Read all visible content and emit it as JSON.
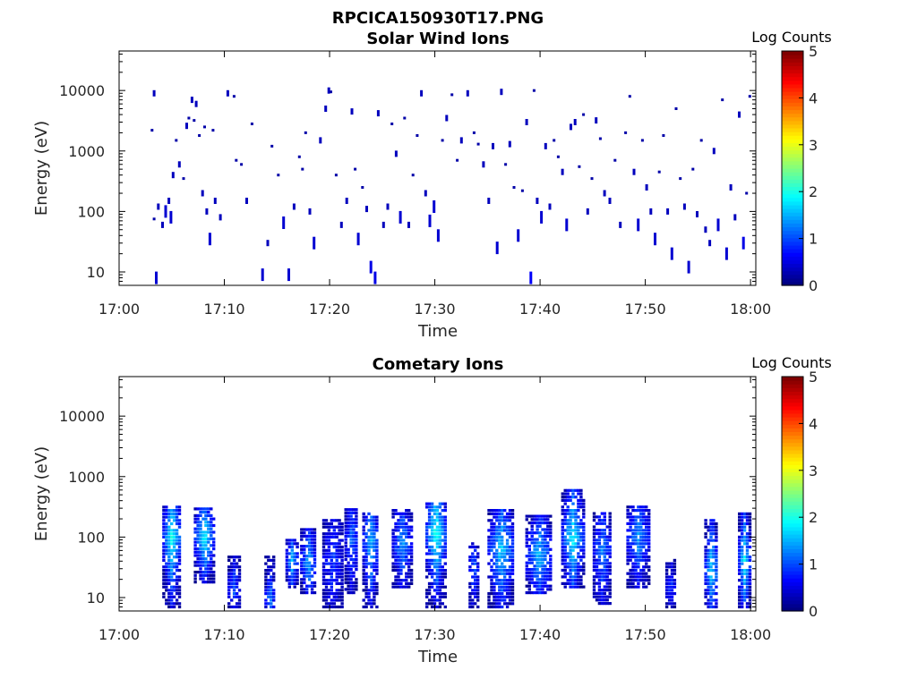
{
  "figure": {
    "title": "RPCICA150930T17.PNG"
  },
  "colorbar": {
    "title": "Log Counts",
    "ticks": [
      "0",
      "1",
      "2",
      "3",
      "4",
      "5"
    ],
    "min": 0,
    "max": 5,
    "colormap": "jet"
  },
  "chart_data": [
    {
      "type": "heatmap",
      "title": "Solar Wind Ions",
      "xlabel": "Time",
      "ylabel": "Energy (eV)",
      "x_ticks": [
        "17:00",
        "17:10",
        "17:20",
        "17:30",
        "17:40",
        "17:50",
        "18:00"
      ],
      "x_range_minutes": [
        0,
        60.5
      ],
      "y_ticks": [
        "10",
        "100",
        "1000",
        "10000"
      ],
      "y_scale": "log",
      "y_range": [
        6,
        45000
      ],
      "color_label": "Log Counts",
      "color_range": [
        0,
        5
      ],
      "cells": [
        [
          3.2,
          9000,
          0.3
        ],
        [
          3.0,
          2200,
          0.2
        ],
        [
          3.2,
          75,
          0.2
        ],
        [
          3.6,
          120,
          0.3
        ],
        [
          3.4,
          8,
          0.4
        ],
        [
          4.0,
          60,
          0.3
        ],
        [
          4.3,
          100,
          0.4
        ],
        [
          4.6,
          150,
          0.3
        ],
        [
          4.8,
          80,
          0.4
        ],
        [
          5.0,
          400,
          0.3
        ],
        [
          5.3,
          1500,
          0.2
        ],
        [
          5.6,
          600,
          0.3
        ],
        [
          6.0,
          350,
          0.2
        ],
        [
          6.3,
          2600,
          0.3
        ],
        [
          6.5,
          3500,
          0.2
        ],
        [
          6.8,
          7000,
          0.3
        ],
        [
          7.0,
          3200,
          0.2
        ],
        [
          7.2,
          6000,
          0.3
        ],
        [
          7.5,
          1800,
          0.2
        ],
        [
          7.8,
          200,
          0.3
        ],
        [
          8.0,
          2500,
          0.2
        ],
        [
          8.2,
          100,
          0.3
        ],
        [
          8.5,
          35,
          0.4
        ],
        [
          8.8,
          2200,
          0.2
        ],
        [
          9.0,
          150,
          0.3
        ],
        [
          9.5,
          80,
          0.3
        ],
        [
          10.2,
          9000,
          0.3
        ],
        [
          10.8,
          8000,
          0.2
        ],
        [
          11.0,
          700,
          0.2
        ],
        [
          11.5,
          600,
          0.2
        ],
        [
          12.0,
          150,
          0.3
        ],
        [
          12.5,
          2800,
          0.2
        ],
        [
          13.5,
          9,
          0.4
        ],
        [
          14.0,
          30,
          0.3
        ],
        [
          14.4,
          1200,
          0.2
        ],
        [
          15.0,
          400,
          0.2
        ],
        [
          15.5,
          65,
          0.4
        ],
        [
          16.0,
          9,
          0.4
        ],
        [
          16.5,
          120,
          0.3
        ],
        [
          17.0,
          800,
          0.2
        ],
        [
          17.3,
          500,
          0.2
        ],
        [
          17.6,
          2000,
          0.2
        ],
        [
          18.0,
          100,
          0.3
        ],
        [
          18.4,
          30,
          0.4
        ],
        [
          19.0,
          1500,
          0.3
        ],
        [
          19.5,
          5000,
          0.3
        ],
        [
          19.8,
          10000,
          0.3
        ],
        [
          20.0,
          9500,
          0.2
        ],
        [
          20.5,
          400,
          0.2
        ],
        [
          21.0,
          60,
          0.3
        ],
        [
          21.5,
          150,
          0.3
        ],
        [
          22.0,
          4500,
          0.3
        ],
        [
          22.3,
          500,
          0.2
        ],
        [
          22.6,
          35,
          0.4
        ],
        [
          23.0,
          250,
          0.2
        ],
        [
          23.4,
          110,
          0.3
        ],
        [
          23.8,
          12,
          0.5
        ],
        [
          24.2,
          8,
          0.5
        ],
        [
          24.5,
          4200,
          0.3
        ],
        [
          25.0,
          60,
          0.3
        ],
        [
          25.4,
          120,
          0.3
        ],
        [
          25.8,
          2800,
          0.2
        ],
        [
          26.2,
          900,
          0.3
        ],
        [
          26.6,
          80,
          0.4
        ],
        [
          27.0,
          3500,
          0.2
        ],
        [
          27.4,
          60,
          0.3
        ],
        [
          27.8,
          400,
          0.2
        ],
        [
          28.2,
          1800,
          0.2
        ],
        [
          28.6,
          9000,
          0.3
        ],
        [
          29.0,
          200,
          0.3
        ],
        [
          29.4,
          70,
          0.4
        ],
        [
          29.8,
          120,
          0.4
        ],
        [
          30.2,
          40,
          0.4
        ],
        [
          30.6,
          1500,
          0.2
        ],
        [
          31.0,
          3500,
          0.3
        ],
        [
          31.5,
          8500,
          0.2
        ],
        [
          32.0,
          700,
          0.2
        ],
        [
          32.4,
          1500,
          0.3
        ],
        [
          33.0,
          9000,
          0.3
        ],
        [
          33.6,
          2000,
          0.2
        ],
        [
          34.0,
          1300,
          0.2
        ],
        [
          34.5,
          600,
          0.3
        ],
        [
          35.0,
          150,
          0.3
        ],
        [
          35.4,
          1200,
          0.3
        ],
        [
          35.8,
          25,
          0.4
        ],
        [
          36.2,
          9500,
          0.3
        ],
        [
          36.6,
          600,
          0.2
        ],
        [
          37.0,
          1300,
          0.3
        ],
        [
          37.4,
          250,
          0.2
        ],
        [
          37.8,
          40,
          0.4
        ],
        [
          38.2,
          220,
          0.2
        ],
        [
          38.6,
          3000,
          0.3
        ],
        [
          39.0,
          8,
          0.6
        ],
        [
          39.3,
          10000,
          0.2
        ],
        [
          39.6,
          150,
          0.3
        ],
        [
          40.0,
          80,
          0.4
        ],
        [
          40.4,
          1200,
          0.3
        ],
        [
          40.8,
          120,
          0.3
        ],
        [
          41.2,
          1500,
          0.2
        ],
        [
          41.6,
          800,
          0.2
        ],
        [
          42.0,
          450,
          0.3
        ],
        [
          42.4,
          60,
          0.4
        ],
        [
          42.8,
          2500,
          0.3
        ],
        [
          43.2,
          3000,
          0.3
        ],
        [
          43.6,
          550,
          0.2
        ],
        [
          44.0,
          4000,
          0.2
        ],
        [
          44.4,
          100,
          0.3
        ],
        [
          44.8,
          350,
          0.2
        ],
        [
          45.2,
          3200,
          0.3
        ],
        [
          45.6,
          1600,
          0.2
        ],
        [
          46.0,
          200,
          0.3
        ],
        [
          46.5,
          150,
          0.3
        ],
        [
          47.0,
          700,
          0.2
        ],
        [
          47.5,
          60,
          0.3
        ],
        [
          48.0,
          2000,
          0.2
        ],
        [
          48.4,
          8000,
          0.2
        ],
        [
          48.8,
          450,
          0.3
        ],
        [
          49.2,
          60,
          0.4
        ],
        [
          49.6,
          1500,
          0.2
        ],
        [
          50.0,
          250,
          0.3
        ],
        [
          50.4,
          100,
          0.3
        ],
        [
          50.8,
          35,
          0.4
        ],
        [
          51.2,
          450,
          0.2
        ],
        [
          51.6,
          1800,
          0.2
        ],
        [
          52.0,
          100,
          0.3
        ],
        [
          52.4,
          20,
          0.4
        ],
        [
          52.8,
          5000,
          0.2
        ],
        [
          53.2,
          350,
          0.2
        ],
        [
          53.6,
          120,
          0.3
        ],
        [
          54.0,
          12,
          0.4
        ],
        [
          54.4,
          500,
          0.2
        ],
        [
          54.8,
          90,
          0.3
        ],
        [
          55.2,
          1500,
          0.2
        ],
        [
          55.6,
          50,
          0.3
        ],
        [
          56.0,
          30,
          0.3
        ],
        [
          56.4,
          1000,
          0.3
        ],
        [
          56.8,
          60,
          0.4
        ],
        [
          57.2,
          7000,
          0.2
        ],
        [
          57.6,
          20,
          0.4
        ],
        [
          58.0,
          250,
          0.3
        ],
        [
          58.4,
          80,
          0.3
        ],
        [
          58.8,
          4000,
          0.3
        ],
        [
          59.2,
          30,
          0.5
        ],
        [
          59.5,
          200,
          0.2
        ],
        [
          59.8,
          8000,
          0.2
        ]
      ]
    },
    {
      "type": "heatmap",
      "title": "Cometary Ions",
      "xlabel": "Time",
      "ylabel": "Energy (eV)",
      "x_ticks": [
        "17:00",
        "17:10",
        "17:20",
        "17:30",
        "17:40",
        "17:50",
        "18:00"
      ],
      "x_range_minutes": [
        0,
        60.5
      ],
      "y_ticks": [
        "10",
        "100",
        "1000",
        "10000"
      ],
      "y_scale": "log",
      "y_range": [
        6,
        45000
      ],
      "color_label": "Log Counts",
      "color_range": [
        0,
        5
      ],
      "bursts": [
        {
          "t": 4.9,
          "half_width_min": 0.8,
          "e_low": 7,
          "e_high": 350,
          "peak_e": 100,
          "peak": 1.8
        },
        {
          "t": 8.0,
          "half_width_min": 0.9,
          "e_low": 18,
          "e_high": 300,
          "peak_e": 100,
          "peak": 1.7
        },
        {
          "t": 10.8,
          "half_width_min": 0.5,
          "e_low": 7,
          "e_high": 50,
          "peak_e": 15,
          "peak": 0.9
        },
        {
          "t": 14.2,
          "half_width_min": 0.4,
          "e_low": 7,
          "e_high": 50,
          "peak_e": 10,
          "peak": 1.2
        },
        {
          "t": 16.3,
          "half_width_min": 0.5,
          "e_low": 15,
          "e_high": 90,
          "peak_e": 40,
          "peak": 1.5
        },
        {
          "t": 17.9,
          "half_width_min": 0.7,
          "e_low": 12,
          "e_high": 150,
          "peak_e": 40,
          "peak": 1.3
        },
        {
          "t": 20.2,
          "half_width_min": 0.9,
          "e_low": 7,
          "e_high": 200,
          "peak_e": 40,
          "peak": 0.8
        },
        {
          "t": 22.0,
          "half_width_min": 0.6,
          "e_low": 12,
          "e_high": 300,
          "peak_e": 90,
          "peak": 1.0
        },
        {
          "t": 23.8,
          "half_width_min": 0.7,
          "e_low": 7,
          "e_high": 250,
          "peak_e": 80,
          "peak": 1.4
        },
        {
          "t": 26.8,
          "half_width_min": 0.9,
          "e_low": 15,
          "e_high": 280,
          "peak_e": 80,
          "peak": 1.2
        },
        {
          "t": 30.0,
          "half_width_min": 0.9,
          "e_low": 7,
          "e_high": 400,
          "peak_e": 120,
          "peak": 1.9
        },
        {
          "t": 33.6,
          "half_width_min": 0.4,
          "e_low": 7,
          "e_high": 80,
          "peak_e": 30,
          "peak": 1.0
        },
        {
          "t": 36.2,
          "half_width_min": 1.2,
          "e_low": 7,
          "e_high": 300,
          "peak_e": 60,
          "peak": 1.5
        },
        {
          "t": 39.8,
          "half_width_min": 1.2,
          "e_low": 12,
          "e_high": 250,
          "peak_e": 50,
          "peak": 1.4
        },
        {
          "t": 43.0,
          "half_width_min": 1.0,
          "e_low": 15,
          "e_high": 600,
          "peak_e": 100,
          "peak": 1.7
        },
        {
          "t": 45.8,
          "half_width_min": 0.8,
          "e_low": 8,
          "e_high": 250,
          "peak_e": 60,
          "peak": 1.1
        },
        {
          "t": 49.2,
          "half_width_min": 1.0,
          "e_low": 15,
          "e_high": 350,
          "peak_e": 100,
          "peak": 1.2
        },
        {
          "t": 52.3,
          "half_width_min": 0.4,
          "e_low": 7,
          "e_high": 45,
          "peak_e": 15,
          "peak": 0.7
        },
        {
          "t": 56.2,
          "half_width_min": 0.6,
          "e_low": 7,
          "e_high": 200,
          "peak_e": 30,
          "peak": 1.6
        },
        {
          "t": 59.3,
          "half_width_min": 0.5,
          "e_low": 7,
          "e_high": 250,
          "peak_e": 40,
          "peak": 1.8
        }
      ]
    }
  ]
}
